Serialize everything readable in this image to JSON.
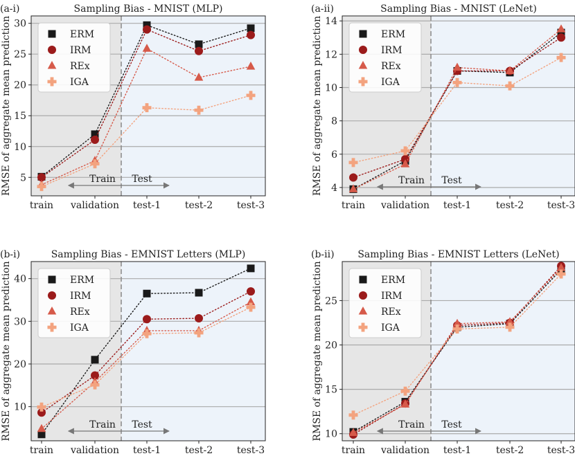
{
  "colors": {
    "train_bg": "#e6e6e6",
    "test_bg": "#edf3fa",
    "grid": "#aaaaaa",
    "divider": "#888888",
    "arrow": "#777777",
    "ERM": "#1a1a1a",
    "IRM": "#9b1b1b",
    "REx": "#d65a4a",
    "IGA": "#f3a37f"
  },
  "chart_data": [
    {
      "type": "line",
      "panel_label": "(a-i)",
      "title": "Sampling Bias - MNIST (MLP)",
      "xlabel": "",
      "ylabel": "RMSE of aggregate mean prediction",
      "categories": [
        "train",
        "validation",
        "test-1",
        "test-2",
        "test-3"
      ],
      "ylim": [
        2,
        31.2
      ],
      "yticks": [
        5,
        10,
        15,
        20,
        25,
        30
      ],
      "series": [
        {
          "name": "ERM",
          "marker": "square",
          "values": [
            5.1,
            12.0,
            29.7,
            26.6,
            29.2
          ]
        },
        {
          "name": "IRM",
          "marker": "circle",
          "values": [
            5.0,
            11.1,
            29.0,
            25.5,
            28.1
          ]
        },
        {
          "name": "REx",
          "marker": "triangle",
          "values": [
            3.8,
            7.7,
            25.9,
            21.2,
            23.0
          ]
        },
        {
          "name": "IGA",
          "marker": "plus",
          "values": [
            3.5,
            7.2,
            16.3,
            15.9,
            18.3
          ]
        }
      ],
      "annotation": {
        "left": "Train",
        "right": "Test"
      }
    },
    {
      "type": "line",
      "panel_label": "(a-ii)",
      "title": "Sampling Bias - MNIST (LeNet)",
      "xlabel": "",
      "ylabel": "RMSE of aggregate mean prediction",
      "categories": [
        "train",
        "validation",
        "test-1",
        "test-2",
        "test-3"
      ],
      "ylim": [
        3.5,
        14.3
      ],
      "yticks": [
        4,
        6,
        8,
        10,
        12,
        14
      ],
      "series": [
        {
          "name": "ERM",
          "marker": "square",
          "values": [
            3.9,
            5.6,
            11.0,
            10.9,
            13.3
          ]
        },
        {
          "name": "IRM",
          "marker": "circle",
          "values": [
            4.6,
            5.7,
            11.0,
            11.0,
            13.0
          ]
        },
        {
          "name": "REx",
          "marker": "triangle",
          "values": [
            3.9,
            5.4,
            11.2,
            11.0,
            13.5
          ]
        },
        {
          "name": "IGA",
          "marker": "plus",
          "values": [
            5.5,
            6.2,
            10.3,
            10.1,
            11.8
          ]
        }
      ],
      "annotation": {
        "left": "Train",
        "right": "Test"
      }
    },
    {
      "type": "line",
      "panel_label": "(b-i)",
      "title": "Sampling Bias - EMNIST Letters (MLP)",
      "xlabel": "",
      "ylabel": "RMSE of aggregate mean prediction",
      "categories": [
        "train",
        "validation",
        "test-1",
        "test-2",
        "test-3"
      ],
      "ylim": [
        2,
        44
      ],
      "yticks": [
        10,
        20,
        30,
        40
      ],
      "series": [
        {
          "name": "ERM",
          "marker": "square",
          "values": [
            3.5,
            21.0,
            36.5,
            36.7,
            42.4
          ]
        },
        {
          "name": "IRM",
          "marker": "circle",
          "values": [
            8.6,
            17.3,
            30.5,
            30.7,
            37.0
          ]
        },
        {
          "name": "REx",
          "marker": "triangle",
          "values": [
            4.8,
            15.8,
            27.8,
            27.8,
            34.5
          ]
        },
        {
          "name": "IGA",
          "marker": "plus",
          "values": [
            9.9,
            15.1,
            27.1,
            27.3,
            33.3
          ]
        }
      ],
      "annotation": {
        "left": "Train",
        "right": "Test"
      }
    },
    {
      "type": "line",
      "panel_label": "(b-ii)",
      "title": "Sampling Bias - EMNIST Letters (LeNet)",
      "xlabel": "",
      "ylabel": "RMSE of aggregate mean prediction",
      "categories": [
        "train",
        "validation",
        "test-1",
        "test-2",
        "test-3"
      ],
      "ylim": [
        9.2,
        29.4
      ],
      "yticks": [
        10,
        15,
        20,
        25
      ],
      "series": [
        {
          "name": "ERM",
          "marker": "square",
          "values": [
            10.2,
            13.6,
            22.0,
            22.4,
            28.5
          ]
        },
        {
          "name": "IRM",
          "marker": "circle",
          "values": [
            9.9,
            13.4,
            22.2,
            22.5,
            28.9
          ]
        },
        {
          "name": "REx",
          "marker": "triangle",
          "values": [
            10.1,
            13.3,
            22.4,
            22.6,
            28.7
          ]
        },
        {
          "name": "IGA",
          "marker": "plus",
          "values": [
            12.1,
            14.8,
            21.8,
            22.0,
            28.0
          ]
        }
      ],
      "annotation": {
        "left": "Train",
        "right": "Test"
      }
    }
  ]
}
